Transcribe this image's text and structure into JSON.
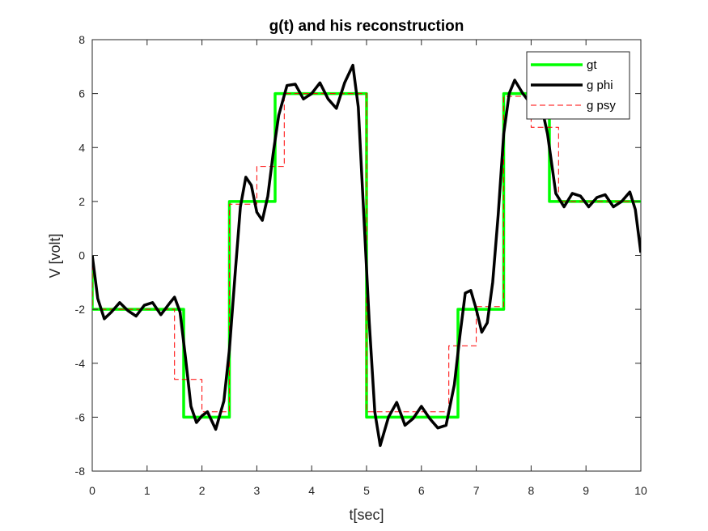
{
  "chart_data": {
    "type": "line",
    "title": "g(t) and his reconstruction",
    "xlabel": "t[sec]",
    "ylabel": "V [volt]",
    "xlim": [
      0,
      10
    ],
    "ylim": [
      -8,
      8
    ],
    "xticks": [
      0,
      1,
      2,
      3,
      4,
      5,
      6,
      7,
      8,
      9,
      10
    ],
    "yticks": [
      -8,
      -6,
      -4,
      -2,
      0,
      2,
      4,
      6,
      8
    ],
    "grid": false,
    "legend_position": "top-right",
    "series": [
      {
        "name": "gt",
        "style": "solid-thick",
        "color": "#00ff00",
        "x": [
          0,
          0,
          1.667,
          1.667,
          2.5,
          2.5,
          3.333,
          3.333,
          5,
          5,
          6.667,
          6.667,
          7.5,
          7.5,
          8.333,
          8.333,
          10
        ],
        "y": [
          0,
          -2,
          -2,
          -6,
          -6,
          2,
          2,
          6,
          6,
          -6,
          -6,
          -2,
          -2,
          6,
          6,
          2,
          2
        ]
      },
      {
        "name": "g phi",
        "style": "solid-thick",
        "color": "#000000",
        "x": [
          0,
          0.1,
          0.22,
          0.35,
          0.5,
          0.65,
          0.8,
          0.95,
          1.1,
          1.25,
          1.4,
          1.5,
          1.6,
          1.7,
          1.8,
          1.9,
          2.0,
          2.1,
          2.25,
          2.4,
          2.5,
          2.6,
          2.7,
          2.8,
          2.9,
          3.0,
          3.1,
          3.2,
          3.3,
          3.4,
          3.55,
          3.7,
          3.85,
          4.0,
          4.15,
          4.3,
          4.45,
          4.6,
          4.75,
          4.85,
          4.95,
          5.05,
          5.15,
          5.25,
          5.4,
          5.55,
          5.7,
          5.85,
          6.0,
          6.15,
          6.3,
          6.45,
          6.6,
          6.7,
          6.8,
          6.9,
          7.0,
          7.1,
          7.2,
          7.3,
          7.4,
          7.5,
          7.6,
          7.7,
          7.85,
          8.0,
          8.15,
          8.3,
          8.45,
          8.6,
          8.75,
          8.9,
          9.05,
          9.2,
          9.35,
          9.5,
          9.65,
          9.8,
          9.9,
          10.0
        ],
        "y": [
          0,
          -1.6,
          -2.35,
          -2.1,
          -1.75,
          -2.05,
          -2.25,
          -1.85,
          -1.75,
          -2.2,
          -1.8,
          -1.55,
          -2.1,
          -3.8,
          -5.6,
          -6.2,
          -5.95,
          -5.8,
          -6.45,
          -5.4,
          -3.5,
          -0.8,
          1.8,
          2.9,
          2.6,
          1.6,
          1.3,
          2.2,
          3.8,
          5.2,
          6.3,
          6.35,
          5.8,
          6.0,
          6.4,
          5.8,
          5.45,
          6.4,
          7.05,
          5.5,
          1.5,
          -2.5,
          -5.8,
          -7.05,
          -6.0,
          -5.45,
          -6.3,
          -6.05,
          -5.6,
          -6.05,
          -6.4,
          -6.3,
          -4.8,
          -3.0,
          -1.4,
          -1.3,
          -2.0,
          -2.85,
          -2.5,
          -1.0,
          1.5,
          4.5,
          6.0,
          6.5,
          6.0,
          5.6,
          5.9,
          4.5,
          2.3,
          1.8,
          2.3,
          2.2,
          1.8,
          2.15,
          2.25,
          1.8,
          2.0,
          2.35,
          1.7,
          0.1
        ]
      },
      {
        "name": "g psy",
        "style": "dashed-thin",
        "color": "#ff0000",
        "x": [
          0,
          0,
          0.333,
          0.333,
          1.5,
          1.5,
          1.5,
          1.5,
          2.0,
          2.0,
          2.5,
          2.5,
          3.0,
          3.0,
          3.5,
          3.5,
          5.0,
          5.0,
          6.5,
          6.5,
          7.0,
          7.0,
          7.5,
          7.5,
          8.0,
          8.0,
          8.5,
          8.5,
          10.0
        ],
        "y": [
          0,
          -2,
          -2,
          -2,
          -2,
          -2,
          -4.6,
          -4.6,
          -4.6,
          -5.8,
          -5.8,
          1.9,
          1.9,
          3.3,
          3.3,
          6,
          6,
          -5.8,
          -5.8,
          -3.35,
          -3.35,
          -1.9,
          -1.9,
          5.9,
          5.9,
          4.75,
          4.75,
          2,
          2
        ]
      }
    ]
  }
}
